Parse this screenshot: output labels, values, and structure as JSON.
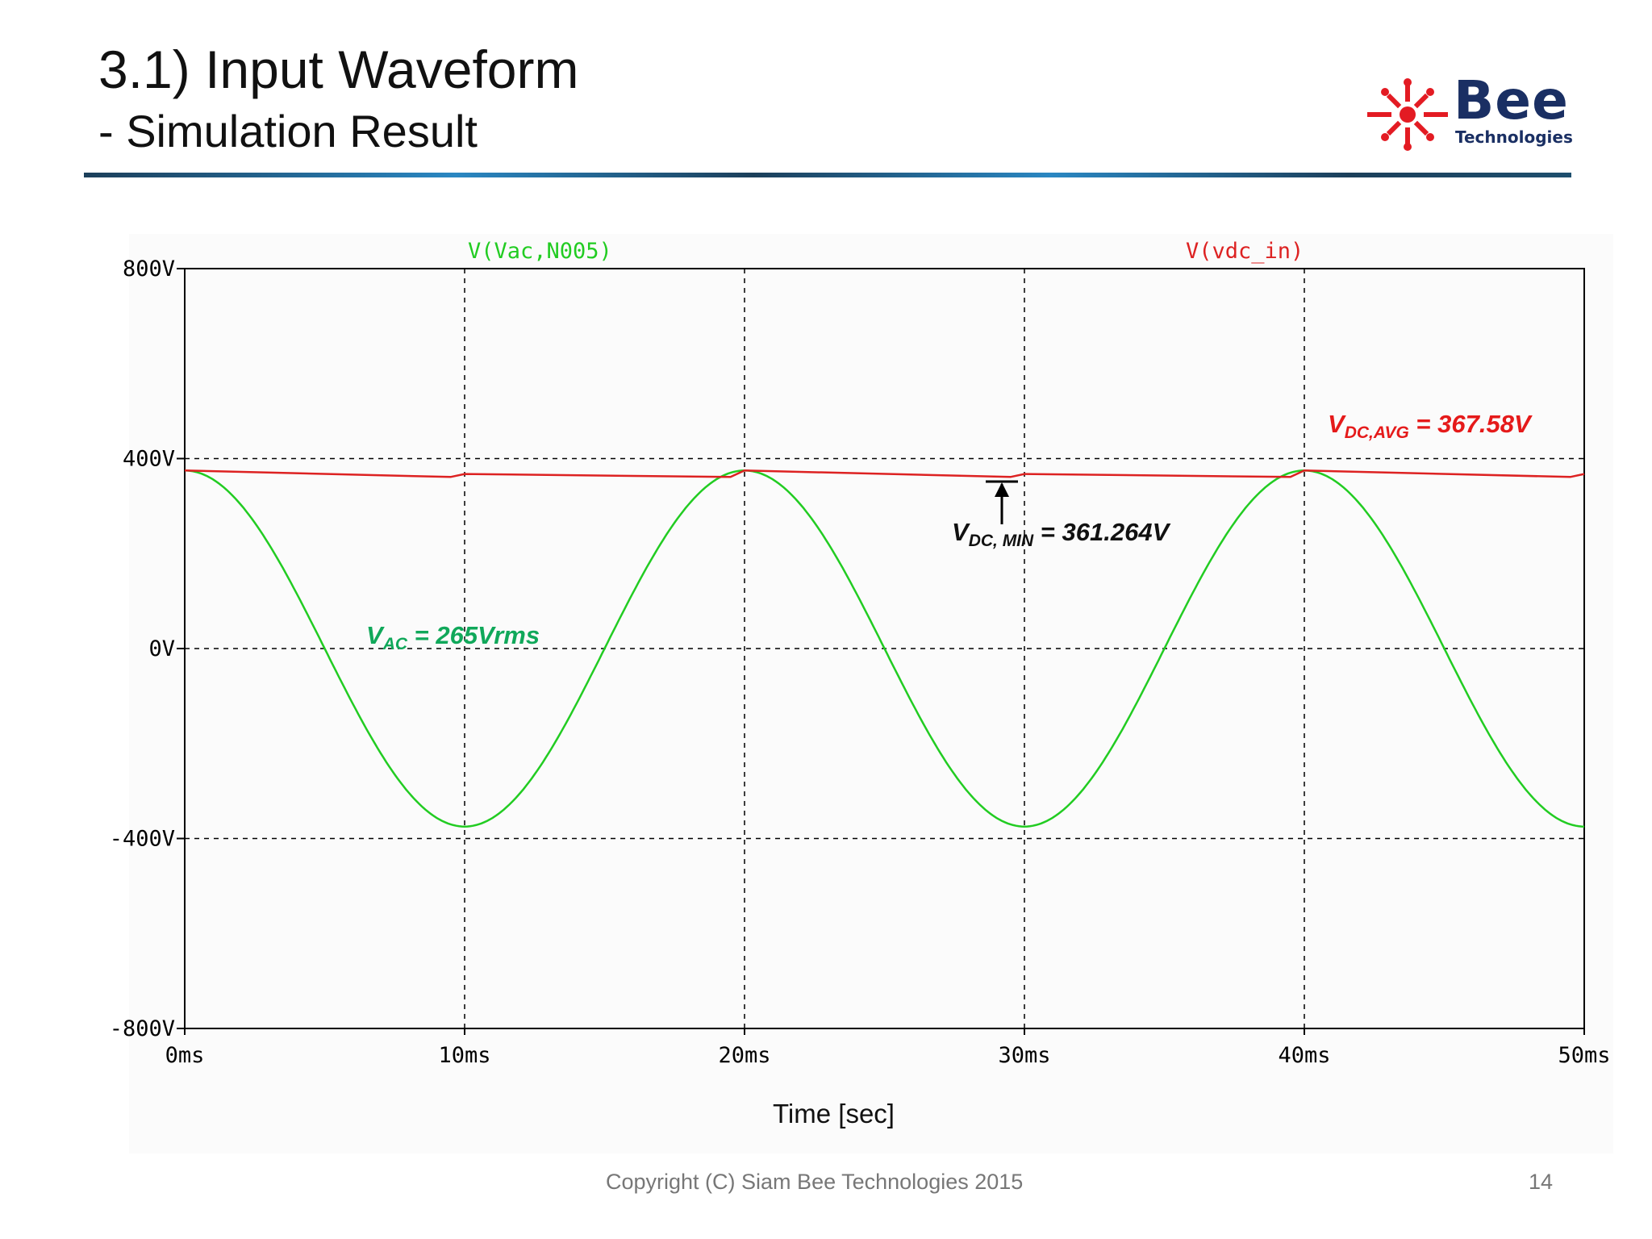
{
  "slide": {
    "title": "3.1) Input Waveform",
    "subtitle": "- Simulation Result",
    "footer": "Copyright (C) Siam Bee Technologies 2015",
    "page_number": "14",
    "logo": {
      "name": "Bee",
      "sub": "Technologies",
      "icon": "bee-logo-icon",
      "accent": "#e31b23",
      "brand": "#1a2f63"
    }
  },
  "annotations": {
    "vac": {
      "main": "V",
      "sub": "AC",
      "rest": " = 265Vrms"
    },
    "vdc_avg": {
      "main": "V",
      "sub": "DC,AVG",
      "rest": " = 367.58V"
    },
    "vdc_min": {
      "main": "V",
      "sub": "DC, MIN",
      "rest": " = 361.264V"
    }
  },
  "chart_data": {
    "type": "line",
    "xlabel": "Time [sec]",
    "ylabel": "",
    "xlim": [
      0,
      50
    ],
    "ylim": [
      -800,
      800
    ],
    "x_unit": "ms",
    "x_ticks": [
      "0ms",
      "10ms",
      "20ms",
      "30ms",
      "40ms",
      "50ms"
    ],
    "y_ticks": [
      "800V",
      "400V",
      "0V",
      "-400V",
      "-800V"
    ],
    "x_tick_values": [
      0,
      10,
      20,
      30,
      40,
      50
    ],
    "y_tick_values": [
      800,
      400,
      0,
      -400,
      -800
    ],
    "grid": true,
    "legend_position": "top",
    "series": [
      {
        "name": "V(Vac,N005)",
        "color": "#22cc22",
        "kind": "sine",
        "amplitude": 374.8,
        "frequency_hz": 50,
        "phase": "cosine",
        "x": [
          0,
          5,
          10,
          15,
          20,
          25,
          30,
          35,
          40,
          45,
          50
        ],
        "values": [
          374.8,
          0,
          -374.8,
          0,
          374.8,
          0,
          -374.8,
          0,
          374.8,
          0,
          -374.8
        ]
      },
      {
        "name": "V(vdc_in)",
        "color": "#dd2222",
        "kind": "ripple",
        "x": [
          0,
          9.5,
          10,
          19.5,
          20,
          29.5,
          30,
          39.5,
          40,
          49.5,
          50
        ],
        "values": [
          374.8,
          361.264,
          367.58,
          361.264,
          374.8,
          361.264,
          367.58,
          361.264,
          374.8,
          361.264,
          367.58
        ]
      }
    ]
  }
}
